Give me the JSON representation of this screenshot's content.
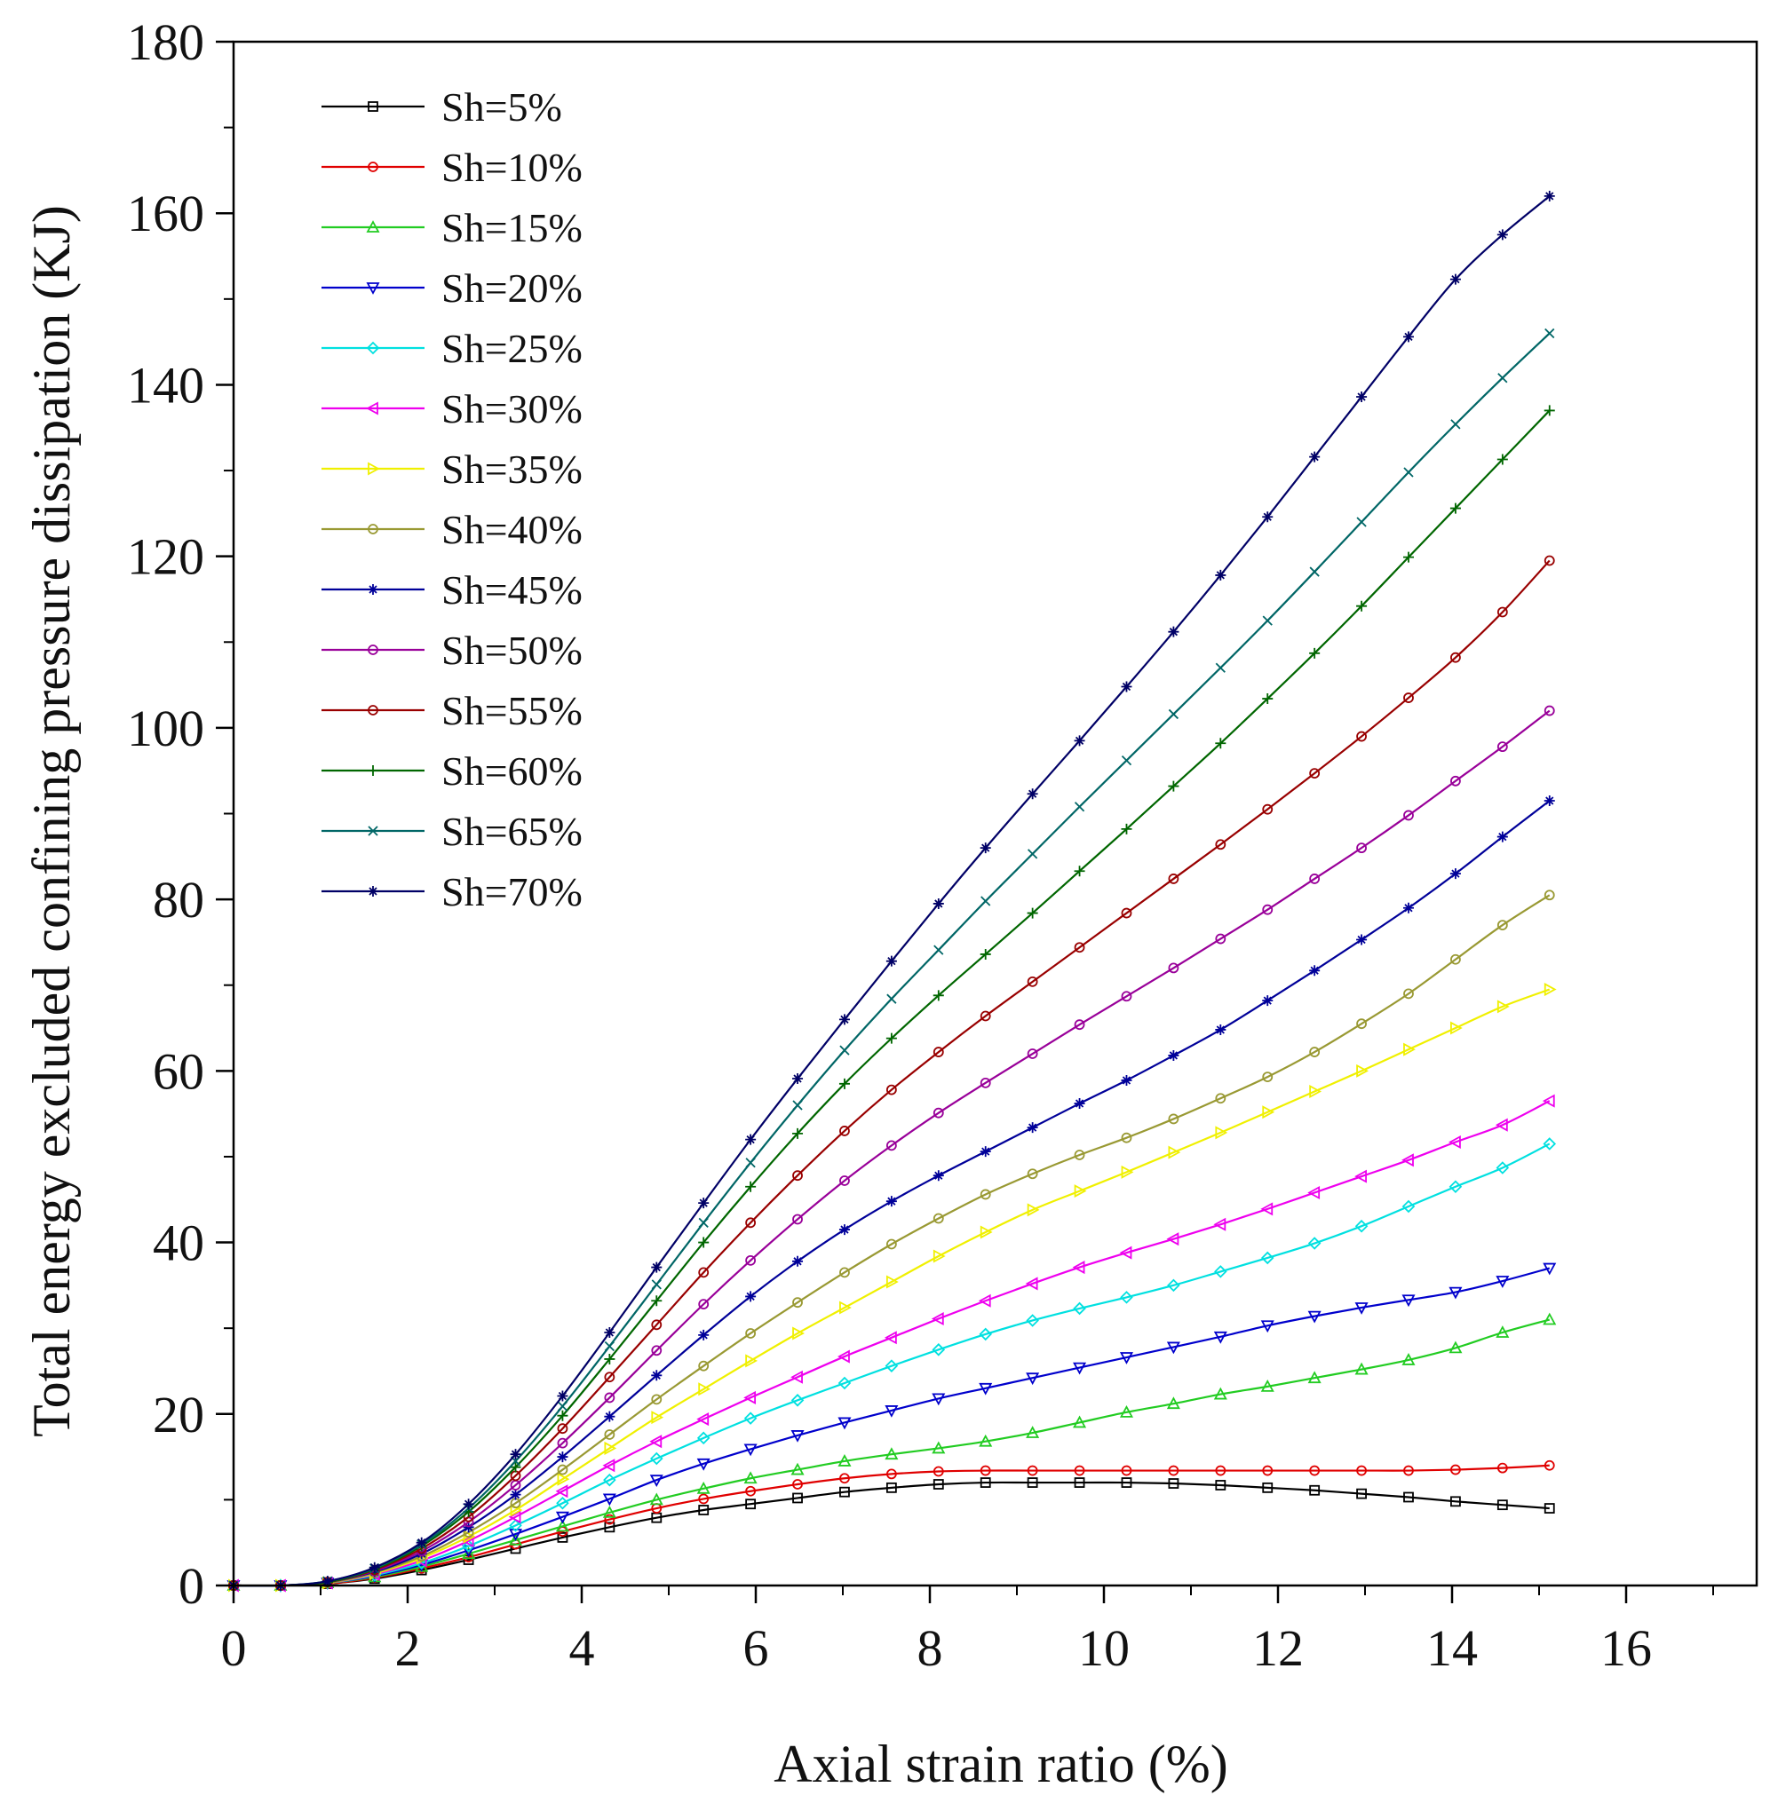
{
  "chart_data": {
    "type": "line",
    "title": "",
    "xlabel": "Axial strain ratio (%)",
    "ylabel": "Total energy excluded confining pressure dissipation (KJ)",
    "xlim": [
      0,
      17.5
    ],
    "ylim": [
      0,
      180
    ],
    "xticks": [
      0,
      2,
      4,
      6,
      8,
      10,
      12,
      14,
      16
    ],
    "yticks": [
      0,
      20,
      40,
      60,
      80,
      100,
      120,
      140,
      160,
      180
    ],
    "grid": false,
    "legend_position": "top-left",
    "x": [
      0,
      0.54,
      1.08,
      1.62,
      2.16,
      2.7,
      3.24,
      3.78,
      4.32,
      4.86,
      5.4,
      5.94,
      6.48,
      7.02,
      7.56,
      8.1,
      8.64,
      9.18,
      9.72,
      10.26,
      10.8,
      11.34,
      11.88,
      12.42,
      12.96,
      13.5,
      14.04,
      14.58,
      15.12
    ],
    "series": [
      {
        "name": "Sh=5%",
        "color": "#000000",
        "marker": "square",
        "values": [
          0,
          0,
          0.2,
          0.8,
          1.8,
          3.0,
          4.3,
          5.6,
          6.8,
          7.9,
          8.8,
          9.5,
          10.2,
          10.9,
          11.4,
          11.8,
          12.0,
          12.0,
          12.0,
          12.0,
          11.9,
          11.7,
          11.4,
          11.1,
          10.7,
          10.3,
          9.8,
          9.4,
          9.0
        ]
      },
      {
        "name": "Sh=10%",
        "color": "#e00000",
        "marker": "circle",
        "values": [
          0,
          0,
          0.2,
          0.9,
          2.0,
          3.3,
          4.8,
          6.3,
          7.7,
          9.0,
          10.1,
          11.0,
          11.8,
          12.5,
          13.0,
          13.3,
          13.4,
          13.4,
          13.4,
          13.4,
          13.4,
          13.4,
          13.4,
          13.4,
          13.4,
          13.4,
          13.5,
          13.7,
          14.0
        ]
      },
      {
        "name": "Sh=15%",
        "color": "#22cc22",
        "marker": "triangle-up",
        "values": [
          0,
          0,
          0.3,
          1.0,
          2.2,
          3.7,
          5.3,
          6.9,
          8.5,
          10.0,
          11.3,
          12.5,
          13.5,
          14.5,
          15.3,
          16.0,
          16.8,
          17.8,
          19.0,
          20.2,
          21.2,
          22.3,
          23.2,
          24.2,
          25.2,
          26.3,
          27.7,
          29.5,
          31.0
        ]
      },
      {
        "name": "Sh=20%",
        "color": "#0000cc",
        "marker": "triangle-down",
        "values": [
          0,
          0,
          0.3,
          1.1,
          2.4,
          4.1,
          6.0,
          8.0,
          10.1,
          12.3,
          14.2,
          15.9,
          17.5,
          19.0,
          20.4,
          21.8,
          23.0,
          24.2,
          25.4,
          26.6,
          27.8,
          29.0,
          30.3,
          31.4,
          32.4,
          33.3,
          34.2,
          35.5,
          37.0
        ]
      },
      {
        "name": "Sh=25%",
        "color": "#00e0e0",
        "marker": "diamond",
        "values": [
          0,
          0,
          0.3,
          1.2,
          2.6,
          4.6,
          7.0,
          9.6,
          12.3,
          14.8,
          17.2,
          19.5,
          21.6,
          23.6,
          25.6,
          27.5,
          29.3,
          30.9,
          32.3,
          33.6,
          35.0,
          36.6,
          38.2,
          39.9,
          41.9,
          44.2,
          46.5,
          48.7,
          51.5
        ]
      },
      {
        "name": "Sh=30%",
        "color": "#ee00ee",
        "marker": "tri-left",
        "values": [
          0,
          0,
          0.3,
          1.3,
          2.9,
          5.2,
          8.0,
          11.0,
          14.0,
          16.8,
          19.4,
          21.9,
          24.3,
          26.7,
          28.9,
          31.1,
          33.2,
          35.2,
          37.1,
          38.8,
          40.4,
          42.1,
          43.9,
          45.8,
          47.7,
          49.6,
          51.7,
          53.7,
          56.5
        ]
      },
      {
        "name": "Sh=35%",
        "color": "#f0f000",
        "marker": "tri-right",
        "values": [
          0,
          0,
          0.3,
          1.4,
          3.2,
          5.7,
          8.8,
          12.4,
          16.0,
          19.6,
          22.9,
          26.2,
          29.4,
          32.4,
          35.4,
          38.4,
          41.2,
          43.8,
          46.0,
          48.2,
          50.5,
          52.8,
          55.2,
          57.6,
          60.0,
          62.5,
          65.0,
          67.5,
          69.5
        ]
      },
      {
        "name": "Sh=40%",
        "color": "#999933",
        "marker": "circle",
        "values": [
          0,
          0,
          0.3,
          1.5,
          3.4,
          6.2,
          9.6,
          13.5,
          17.6,
          21.7,
          25.6,
          29.4,
          33.0,
          36.5,
          39.8,
          42.8,
          45.6,
          48.0,
          50.2,
          52.2,
          54.4,
          56.8,
          59.3,
          62.2,
          65.5,
          69.0,
          73.0,
          77.0,
          80.5
        ]
      },
      {
        "name": "Sh=45%",
        "color": "#000099",
        "marker": "star",
        "values": [
          0,
          0,
          0.4,
          1.6,
          3.7,
          6.8,
          10.6,
          15.0,
          19.7,
          24.5,
          29.2,
          33.7,
          37.8,
          41.5,
          44.8,
          47.8,
          50.6,
          53.4,
          56.2,
          58.9,
          61.8,
          64.8,
          68.2,
          71.7,
          75.3,
          79.0,
          83.0,
          87.3,
          91.5
        ]
      },
      {
        "name": "Sh=50%",
        "color": "#990099",
        "marker": "circle",
        "values": [
          0,
          0,
          0.4,
          1.7,
          4.0,
          7.4,
          11.7,
          16.6,
          21.9,
          27.4,
          32.8,
          37.9,
          42.7,
          47.2,
          51.3,
          55.1,
          58.6,
          62.0,
          65.4,
          68.7,
          72.0,
          75.4,
          78.8,
          82.4,
          86.0,
          89.8,
          93.8,
          97.8,
          102.0
        ]
      },
      {
        "name": "Sh=55%",
        "color": "#990000",
        "marker": "circle",
        "values": [
          0,
          0,
          0.4,
          1.8,
          4.3,
          8.0,
          12.8,
          18.3,
          24.3,
          30.4,
          36.5,
          42.3,
          47.8,
          53.0,
          57.8,
          62.2,
          66.4,
          70.4,
          74.4,
          78.4,
          82.4,
          86.4,
          90.5,
          94.7,
          99.0,
          103.5,
          108.2,
          113.5,
          119.5
        ]
      },
      {
        "name": "Sh=60%",
        "color": "#006600",
        "marker": "plus",
        "values": [
          0,
          0,
          0.4,
          1.9,
          4.6,
          8.6,
          13.8,
          19.8,
          26.4,
          33.2,
          40.0,
          46.5,
          52.7,
          58.5,
          63.8,
          68.8,
          73.6,
          78.4,
          83.3,
          88.2,
          93.2,
          98.2,
          103.4,
          108.7,
          114.2,
          119.9,
          125.6,
          131.3,
          137.0
        ]
      },
      {
        "name": "Sh=65%",
        "color": "#006666",
        "marker": "x",
        "values": [
          0,
          0,
          0.5,
          2.0,
          4.8,
          9.0,
          14.5,
          20.9,
          27.9,
          35.1,
          42.3,
          49.3,
          56.0,
          62.4,
          68.4,
          74.1,
          79.8,
          85.3,
          90.8,
          96.2,
          101.6,
          107.0,
          112.5,
          118.2,
          124.0,
          129.8,
          135.4,
          140.8,
          146.0
        ]
      },
      {
        "name": "Sh=70%",
        "color": "#000066",
        "marker": "star",
        "values": [
          0,
          0,
          0.5,
          2.1,
          5.0,
          9.5,
          15.3,
          22.1,
          29.5,
          37.1,
          44.6,
          52.0,
          59.1,
          66.0,
          72.8,
          79.5,
          86.0,
          92.3,
          98.5,
          104.8,
          111.2,
          117.8,
          124.6,
          131.6,
          138.6,
          145.6,
          152.3,
          157.5,
          162.0
        ]
      }
    ]
  }
}
